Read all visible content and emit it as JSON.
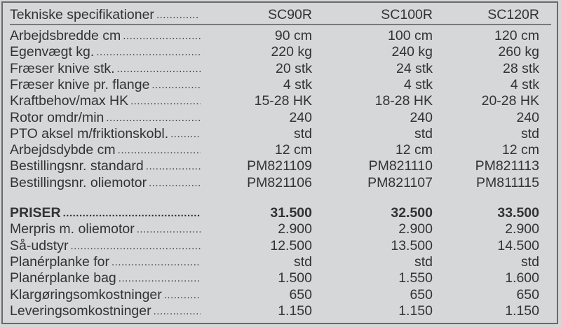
{
  "header": {
    "title": "Tekniske specifikationer",
    "models": [
      "SC90R",
      "SC100R",
      "SC120R"
    ]
  },
  "specs": [
    {
      "label": "Arbejdsbredde cm",
      "values": [
        "90 cm",
        "100 cm",
        "120 cm"
      ]
    },
    {
      "label": "Egenvægt kg.",
      "values": [
        "220 kg",
        "240 kg",
        "260 kg"
      ]
    },
    {
      "label": "Fræser knive stk.",
      "values": [
        "20 stk",
        "24 stk",
        "28 stk"
      ]
    },
    {
      "label": "Fræser knive pr. flange",
      "values": [
        "4 stk",
        "4 stk",
        "4 stk"
      ]
    },
    {
      "label": "Kraftbehov/max HK",
      "values": [
        "15-28 HK",
        "18-28 HK",
        "20-28 HK"
      ]
    },
    {
      "label": "Rotor omdr/min",
      "values": [
        "240",
        "240",
        "240"
      ]
    },
    {
      "label": "PTO aksel m/friktionskobl.",
      "values": [
        "std",
        "std",
        "std"
      ]
    },
    {
      "label": "Arbejdsdybde cm",
      "values": [
        "12 cm",
        "12 cm",
        "12 cm"
      ]
    },
    {
      "label": "Bestillingsnr. standard",
      "values": [
        "PM821109",
        "PM821110",
        "PM821113"
      ]
    },
    {
      "label": "Bestillingsnr. oliemotor",
      "values": [
        "PM821106",
        "PM821107",
        "PM811115"
      ]
    }
  ],
  "prices": [
    {
      "label": "PRISER",
      "values": [
        "31.500",
        "32.500",
        "33.500"
      ]
    },
    {
      "label": "Merpris m. oliemotor",
      "values": [
        "2.900",
        "2.900",
        "2.900"
      ]
    },
    {
      "label": "Så-udstyr",
      "values": [
        "12.500",
        "13.500",
        "14.500"
      ]
    },
    {
      "label": "Planérplanke for",
      "values": [
        "std",
        "std",
        "std"
      ]
    },
    {
      "label": "Planérplanke bag",
      "values": [
        "1.500",
        "1.550",
        "1.600"
      ]
    },
    {
      "label": "Klargøringsomkostninger",
      "values": [
        "650",
        "650",
        "650"
      ]
    },
    {
      "label": "Leveringsomkostninger",
      "values": [
        "1.150",
        "1.150",
        "1.150"
      ]
    }
  ]
}
